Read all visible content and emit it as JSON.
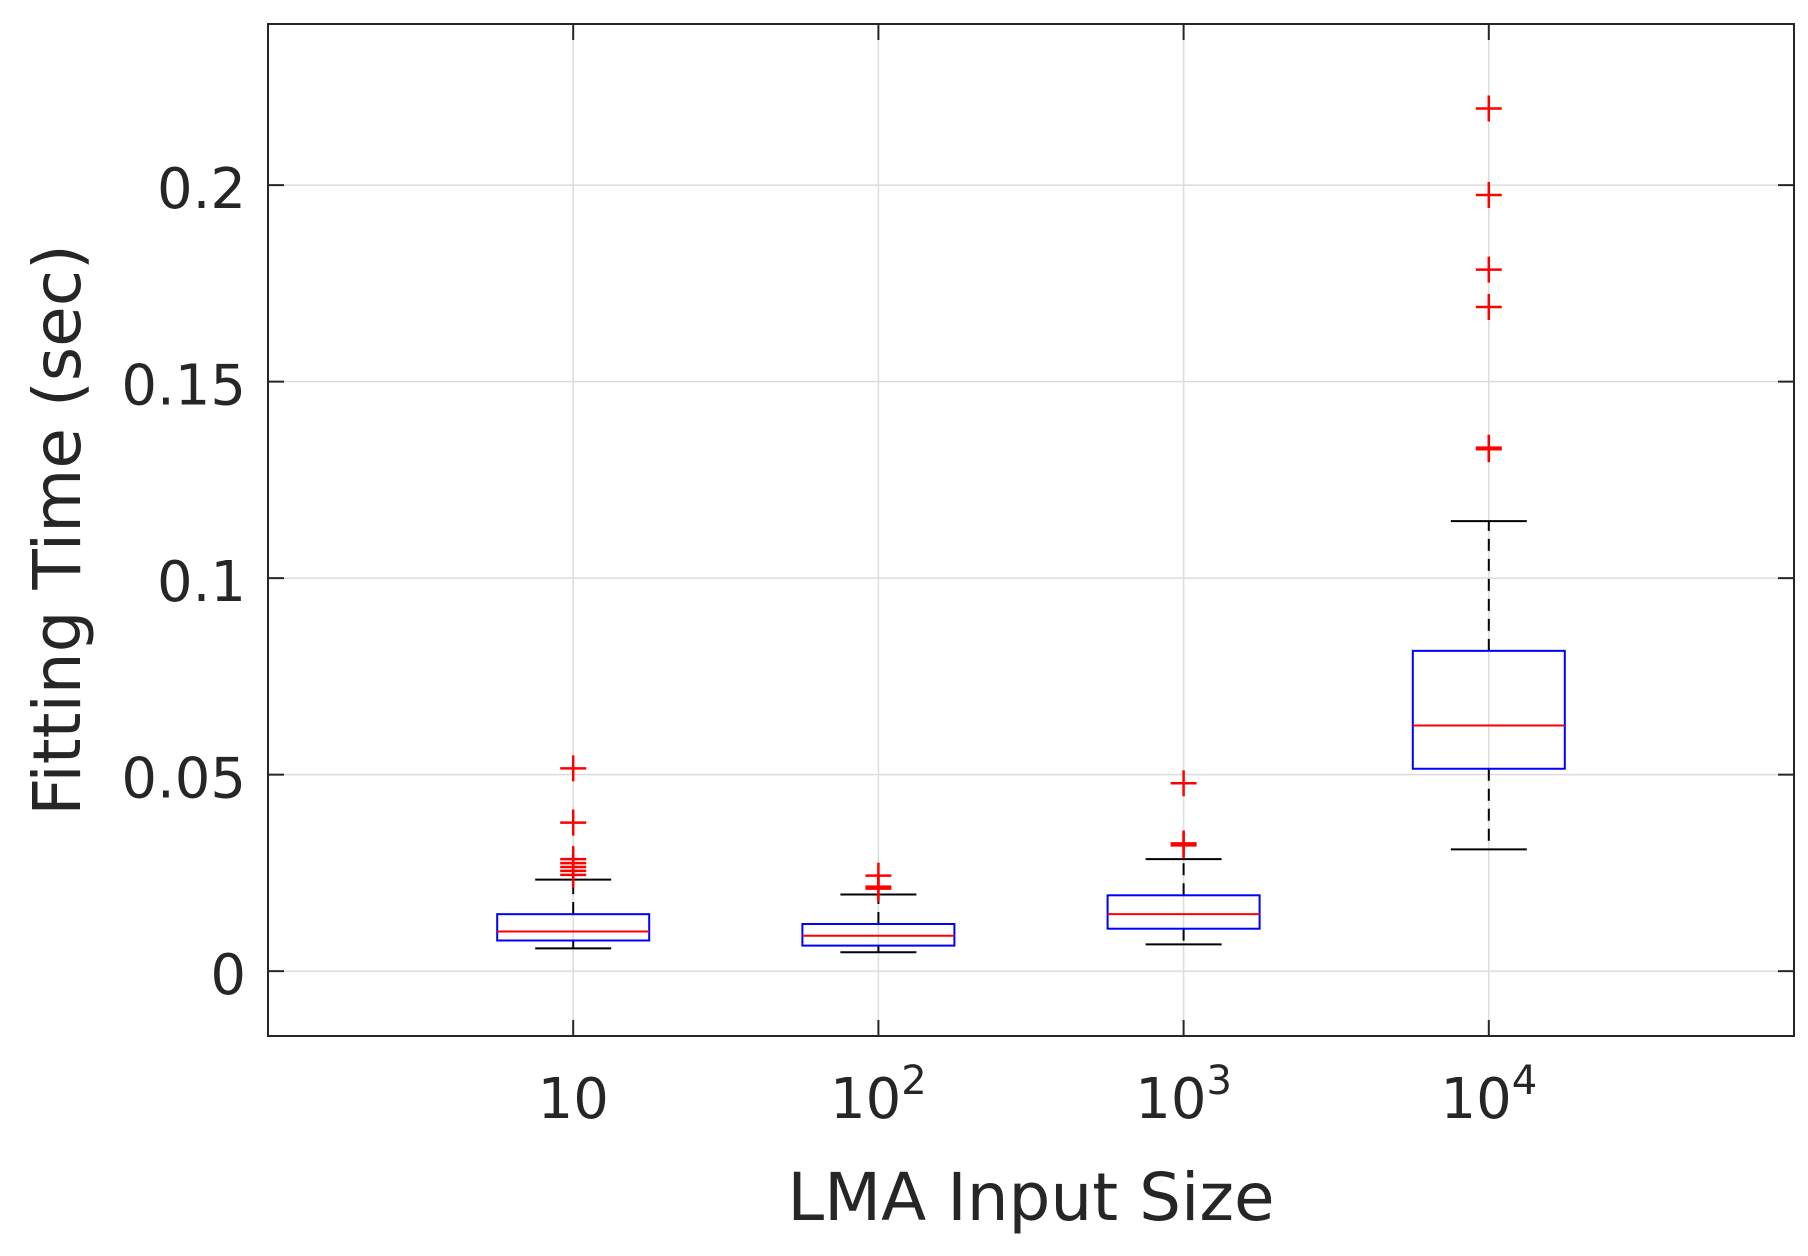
{
  "chart_data": {
    "type": "boxplot",
    "title": "",
    "xlabel": "LMA Input Size",
    "ylabel": "Fitting Time (sec)",
    "ylim": [
      -0.0165,
      0.241
    ],
    "grid": true,
    "y_ticks": [
      {
        "value": 0,
        "label": "0"
      },
      {
        "value": 0.05,
        "label": "0.05"
      },
      {
        "value": 0.1,
        "label": "0.1"
      },
      {
        "value": 0.15,
        "label": "0.15"
      },
      {
        "value": 0.2,
        "label": "0.2"
      }
    ],
    "categories": [
      {
        "base": "10",
        "exp": ""
      },
      {
        "base": "10",
        "exp": "2"
      },
      {
        "base": "10",
        "exp": "3"
      },
      {
        "base": "10",
        "exp": "4"
      }
    ],
    "boxes": [
      {
        "whisker_low": 0.0058,
        "q1": 0.0078,
        "median": 0.0101,
        "q3": 0.0145,
        "whisker_high": 0.0233,
        "outliers": [
          0.0516,
          0.0378,
          0.0285,
          0.0275,
          0.0265,
          0.0255,
          0.0245
        ]
      },
      {
        "whisker_low": 0.0048,
        "q1": 0.0065,
        "median": 0.009,
        "q3": 0.012,
        "whisker_high": 0.0195,
        "outliers": [
          0.0243,
          0.0215,
          0.021
        ]
      },
      {
        "whisker_low": 0.0068,
        "q1": 0.0108,
        "median": 0.0145,
        "q3": 0.0193,
        "whisker_high": 0.0285,
        "outliers": [
          0.0478,
          0.0325,
          0.032
        ]
      },
      {
        "whisker_low": 0.031,
        "q1": 0.0515,
        "median": 0.0625,
        "q3": 0.0815,
        "whisker_high": 0.1145,
        "outliers": [
          0.2195,
          0.1975,
          0.1785,
          0.169,
          0.1332,
          0.1328
        ]
      }
    ],
    "colors": {
      "box": "#0000ff",
      "median": "#ff0000",
      "outlier": "#ff0000",
      "whisker": "#000000",
      "grid": "#dcdcdc",
      "axis": "#262626"
    }
  }
}
